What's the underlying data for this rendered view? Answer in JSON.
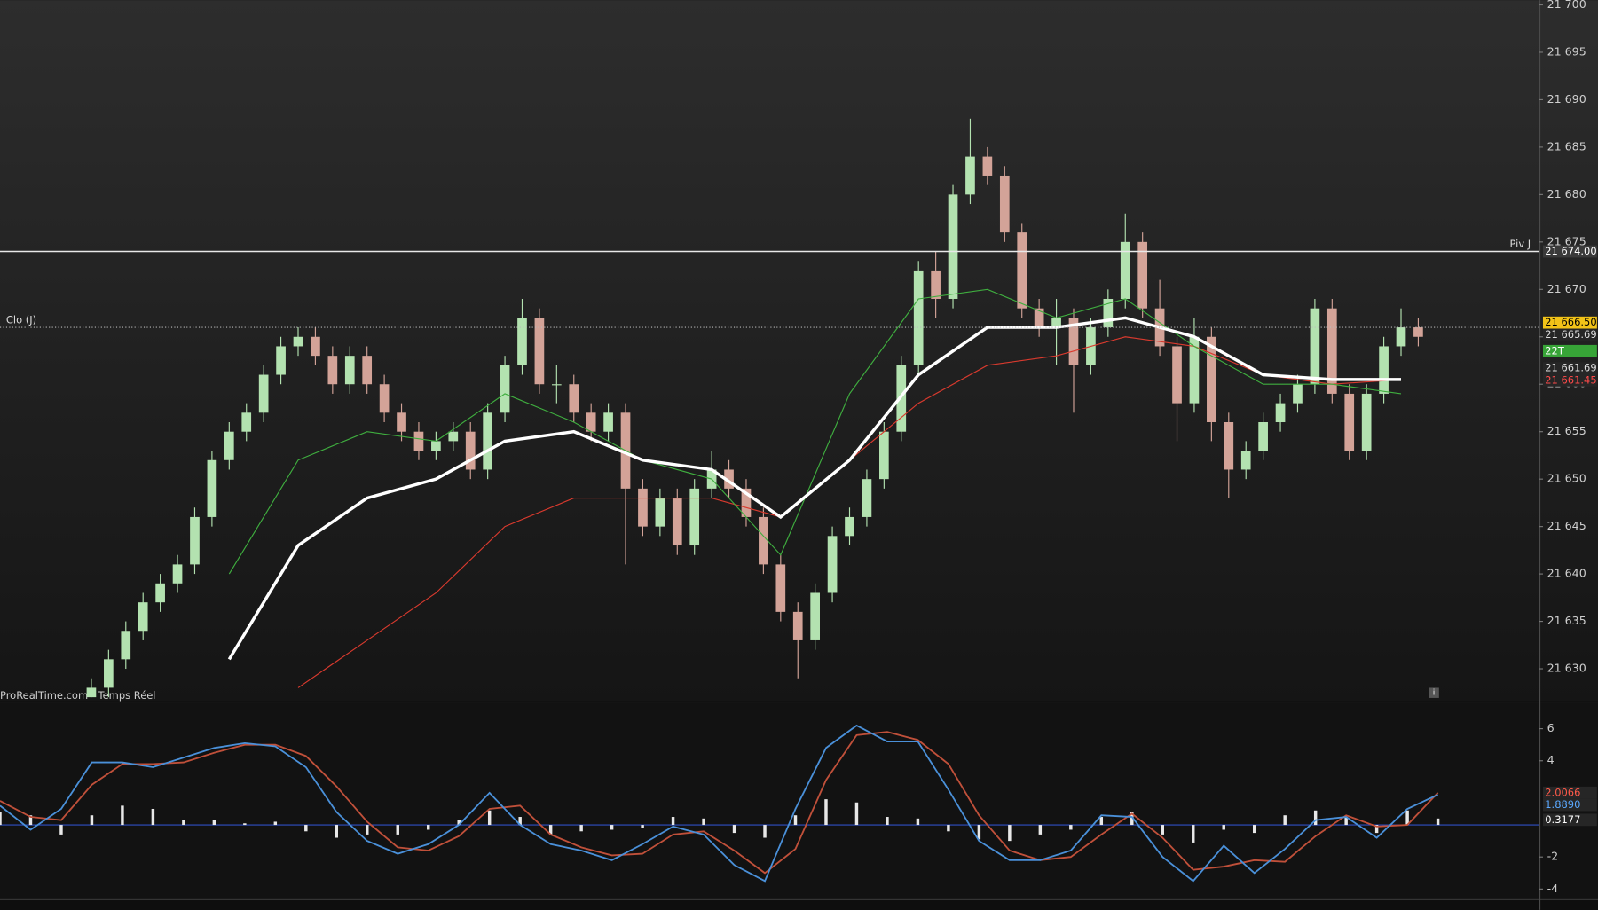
{
  "chart_data": [
    {
      "type": "candlestick",
      "watermark": "ProRealTime.com - Temps Réel",
      "xlim": [
        -5.3,
        84
      ],
      "ylim": [
        21626.6,
        21700.5
      ],
      "yticks": [
        {
          "value": 21630,
          "label": "21 630"
        },
        {
          "value": 21635,
          "label": "21 635"
        },
        {
          "value": 21640,
          "label": "21 640"
        },
        {
          "value": 21645,
          "label": "21 645"
        },
        {
          "value": 21650,
          "label": "21 650"
        },
        {
          "value": 21655,
          "label": "21 655"
        },
        {
          "value": 21660,
          "label": "21 660"
        },
        {
          "value": 21665,
          "label": "21 665"
        },
        {
          "value": 21670,
          "label": "21 670"
        },
        {
          "value": 21675,
          "label": "21 675"
        },
        {
          "value": 21680,
          "label": "21 680"
        },
        {
          "value": 21685,
          "label": "21 685"
        },
        {
          "value": 21690,
          "label": "21 690"
        },
        {
          "value": 21695,
          "label": "21 695"
        },
        {
          "value": 21700,
          "label": "21 700"
        }
      ],
      "up_color": "#b3e2b0",
      "down_color": "#d3a398",
      "open": [
        21627,
        21628,
        21631,
        21634,
        21637,
        21639,
        21641,
        21646,
        21652,
        21655,
        21657,
        21661,
        21664,
        21665,
        21663,
        21660,
        21663,
        21660,
        21657,
        21655,
        21653,
        21654,
        21655,
        21651,
        21657,
        21662,
        21667,
        21660,
        21660,
        21657,
        21655,
        21657,
        21649,
        21645,
        21648,
        21643,
        21649,
        21651,
        21649,
        21646,
        21641,
        21636,
        21633,
        21638,
        21644,
        21646,
        21650,
        21655,
        21662,
        21672,
        21669,
        21680,
        21684,
        21682,
        21676,
        21668,
        21666,
        21667,
        21662,
        21666,
        21669,
        21675,
        21668,
        21664,
        21658,
        21665,
        21656,
        21651,
        21653,
        21656,
        21658,
        21660,
        21668,
        21659,
        21653,
        21659,
        21664,
        21666
      ],
      "high": [
        21629,
        21632,
        21635,
        21638,
        21640,
        21642,
        21647,
        21653,
        21656,
        21658,
        21662,
        21665,
        21666,
        21666,
        21664,
        21664,
        21664,
        21661,
        21658,
        21656,
        21655,
        21656,
        21656,
        21658,
        21663,
        21669,
        21668,
        21662,
        21661,
        21658,
        21658,
        21658,
        21650,
        21649,
        21649,
        21650,
        21653,
        21652,
        21650,
        21647,
        21642,
        21637,
        21639,
        21645,
        21647,
        21651,
        21656,
        21663,
        21673,
        21674,
        21681,
        21688,
        21685,
        21683,
        21677,
        21669,
        21669,
        21668,
        21667,
        21670,
        21678,
        21676,
        21671,
        21665,
        21667,
        21666,
        21657,
        21654,
        21657,
        21659,
        21661,
        21669,
        21669,
        21660,
        21660,
        21665,
        21668,
        21667
      ],
      "low": [
        21627,
        21627,
        21630,
        21633,
        21636,
        21638,
        21640,
        21645,
        21651,
        21654,
        21656,
        21660,
        21663,
        21662,
        21659,
        21659,
        21659,
        21656,
        21654,
        21652,
        21652,
        21653,
        21650,
        21650,
        21656,
        21661,
        21659,
        21658,
        21656,
        21654,
        21654,
        21641,
        21644,
        21644,
        21642,
        21642,
        21648,
        21648,
        21645,
        21640,
        21635,
        21629,
        21632,
        21637,
        21643,
        21645,
        21649,
        21654,
        21661,
        21667,
        21668,
        21679,
        21681,
        21675,
        21667,
        21665,
        21662,
        21657,
        21661,
        21665,
        21668,
        21667,
        21663,
        21654,
        21657,
        21654,
        21648,
        21650,
        21652,
        21655,
        21657,
        21659,
        21658,
        21652,
        21652,
        21658,
        21663,
        21664
      ],
      "close": [
        21628,
        21631,
        21634,
        21637,
        21639,
        21641,
        21646,
        21652,
        21655,
        21657,
        21661,
        21664,
        21665,
        21663,
        21660,
        21663,
        21660,
        21657,
        21655,
        21653,
        21654,
        21655,
        21651,
        21657,
        21662,
        21667,
        21660,
        21660,
        21657,
        21655,
        21657,
        21649,
        21645,
        21648,
        21643,
        21649,
        21651,
        21649,
        21646,
        21641,
        21636,
        21633,
        21638,
        21644,
        21646,
        21650,
        21655,
        21662,
        21672,
        21669,
        21680,
        21684,
        21682,
        21676,
        21668,
        21666,
        21667,
        21662,
        21666,
        21669,
        21675,
        21668,
        21664,
        21658,
        21665,
        21656,
        21651,
        21653,
        21656,
        21658,
        21660,
        21668,
        21659,
        21653,
        21659,
        21664,
        21666,
        21665
      ],
      "overlay_x": [
        0,
        4,
        8,
        12,
        16,
        20,
        24,
        28,
        32,
        36,
        40,
        44,
        48,
        52,
        56,
        60,
        64,
        68,
        72,
        76
      ],
      "overlays": [
        {
          "color": "#d93a2e",
          "width": 1,
          "values": [
            null,
            null,
            null,
            21628,
            21633,
            21638,
            21645,
            21648,
            21648,
            21648,
            21646,
            21652,
            21658,
            21662,
            21663,
            21665,
            21664,
            21661,
            21660,
            21660.5
          ]
        },
        {
          "color": "#3fae3f",
          "width": 1,
          "values": [
            null,
            null,
            21640,
            21652,
            21655,
            21654,
            21659,
            21656,
            21652,
            21650,
            21642,
            21659,
            21669,
            21670,
            21667,
            21669,
            21664,
            21660,
            21660,
            21659
          ]
        },
        {
          "color": "#ffffff",
          "width": 3,
          "values": [
            null,
            null,
            21631,
            21643,
            21648,
            21650,
            21654,
            21655,
            21652,
            21651,
            21646,
            21652,
            21661,
            21666,
            21666,
            21667,
            21665,
            21661,
            21660.5,
            21660.5
          ]
        }
      ],
      "levels": [
        {
          "label": "Piv J",
          "value": 21674,
          "style": "solid",
          "side": "right"
        },
        {
          "label": "Clo (J)",
          "value": 21666,
          "style": "dotted",
          "side": "left"
        }
      ],
      "tags": [
        {
          "value": 21674,
          "label": "21 674.00",
          "color": "#3a3a3a",
          "text_color": "#ffffff"
        },
        {
          "value": 21666.5,
          "label": "21 666.50",
          "color": "#f2c318",
          "text_color": "#000000"
        },
        {
          "value": 21665.69,
          "label": "21 665.69",
          "color": "#262626",
          "text_color": "#dddddd"
        },
        {
          "value": 21663.5,
          "label": "22T",
          "color": "#37a437",
          "text_color": "#ffffff"
        },
        {
          "value": 21661.69,
          "label": "21 661.69",
          "color": "#262626",
          "text_color": "#dddddd"
        },
        {
          "value": 21661.45,
          "label": "21 661.45",
          "color": "#262626",
          "text_color": "#ff4a4a"
        }
      ]
    },
    {
      "type": "macd",
      "xlim": [
        0,
        50.3
      ],
      "ylim": [
        -4.6,
        7.6
      ],
      "yticks": [
        -4,
        -2,
        4,
        6
      ],
      "zero_line": true,
      "histogram_color": "#e8e8e8",
      "histogram": [
        0.8,
        0.6,
        -0.6,
        0.6,
        1.2,
        1.0,
        0.3,
        0.3,
        0.1,
        0.2,
        -0.4,
        -0.8,
        -0.6,
        -0.6,
        -0.3,
        0.3,
        0.9,
        0.5,
        -0.6,
        -0.4,
        -0.3,
        -0.2,
        0.5,
        0.4,
        -0.5,
        -0.8,
        0.6,
        1.6,
        1.4,
        0.5,
        0.4,
        -0.4,
        -0.9,
        -1.0,
        -0.6,
        -0.3,
        0.5,
        0.8,
        -0.6,
        -1.1,
        -0.3,
        -0.5,
        0.6,
        0.9,
        0.5,
        -0.5,
        0.9,
        0.4
      ],
      "series": [
        {
          "color": "#c0503a",
          "values": [
            1.5,
            0.5,
            0.3,
            2.5,
            3.8,
            3.8,
            3.9,
            4.5,
            5.0,
            5.0,
            4.3,
            2.4,
            0.2,
            -1.4,
            -1.6,
            -0.7,
            1.0,
            1.2,
            -0.6,
            -1.4,
            -1.9,
            -1.8,
            -0.6,
            -0.4,
            -1.6,
            -3.0,
            -1.5,
            2.8,
            5.6,
            5.8,
            5.3,
            3.8,
            0.6,
            -1.6,
            -2.2,
            -2.0,
            -0.6,
            0.7,
            -0.8,
            -2.8,
            -2.6,
            -2.2,
            -2.3,
            -0.7,
            0.6,
            -0.1,
            0.0,
            2.0066
          ]
        },
        {
          "color": "#4a90d9",
          "values": [
            1.2,
            -0.3,
            1.0,
            3.9,
            3.9,
            3.6,
            4.2,
            4.8,
            5.1,
            4.9,
            3.6,
            0.8,
            -1.0,
            -1.8,
            -1.2,
            0.0,
            2.0,
            0.0,
            -1.2,
            -1.6,
            -2.2,
            -1.2,
            -0.1,
            -0.6,
            -2.5,
            -3.5,
            1.0,
            4.8,
            6.2,
            5.2,
            5.2,
            2.2,
            -1.0,
            -2.2,
            -2.2,
            -1.6,
            0.6,
            0.5,
            -2.0,
            -3.5,
            -1.3,
            -3.0,
            -1.5,
            0.3,
            0.5,
            -0.8,
            1.0,
            1.889
          ]
        }
      ],
      "tags": [
        {
          "value": 2.0066,
          "label": "2.0066",
          "color": "#262626",
          "text_color": "#ff5a4a"
        },
        {
          "value": 1.889,
          "label": "1.8890",
          "color": "#262626",
          "text_color": "#5aa8ff"
        },
        {
          "value": 0.3177,
          "label": "0.3177",
          "color": "#262626",
          "text_color": "#ffffff"
        }
      ]
    }
  ]
}
